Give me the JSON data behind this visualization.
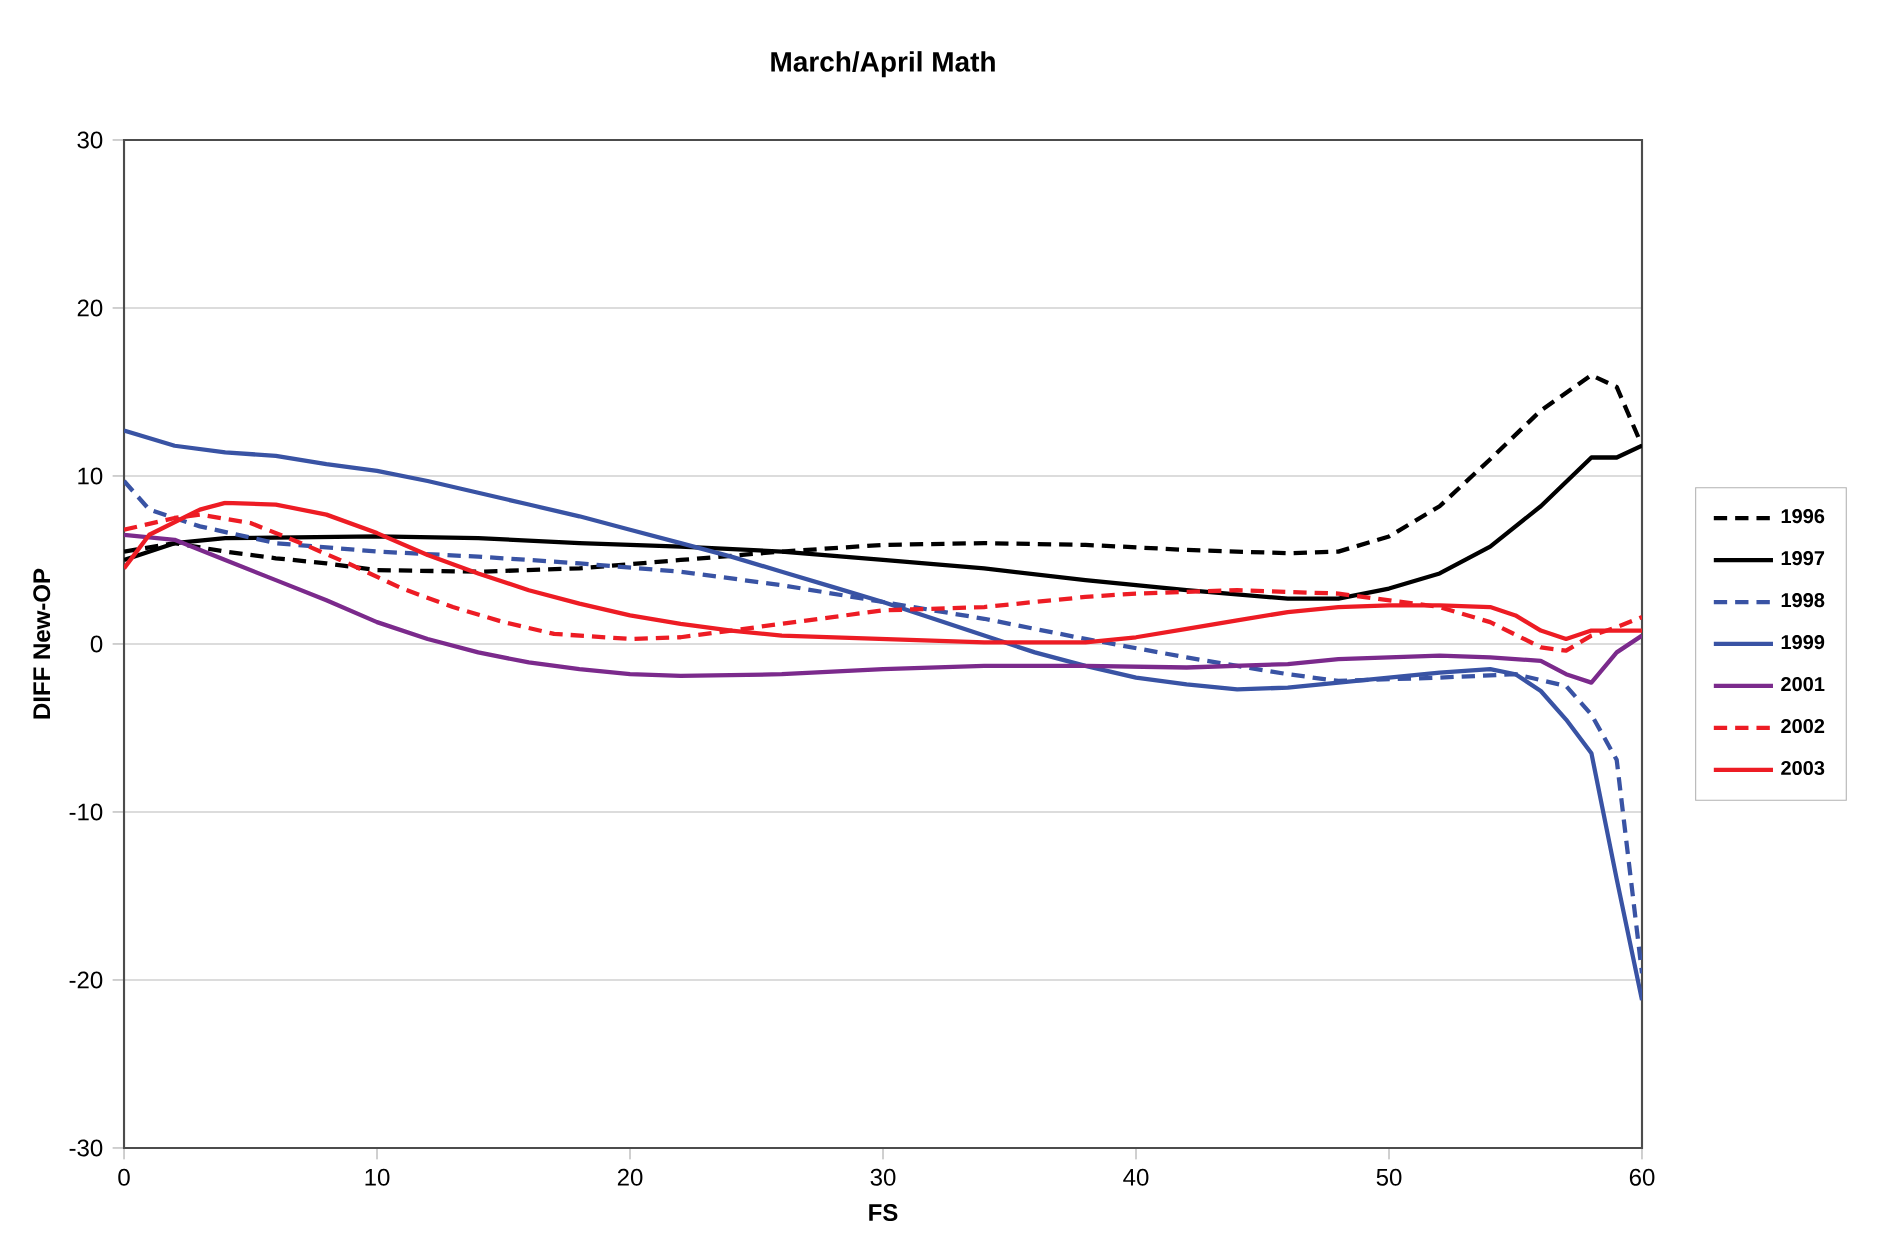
{
  "chart_data": {
    "type": "line",
    "title": "March/April Math",
    "xlabel": "FS",
    "ylabel": "DIFF New-OP",
    "xlim": [
      0,
      60
    ],
    "ylim": [
      -30,
      30
    ],
    "xticks": [
      0,
      10,
      20,
      30,
      40,
      50,
      60
    ],
    "yticks": [
      -30,
      -20,
      -10,
      0,
      10,
      20,
      30
    ],
    "grid": "y",
    "legend": "right",
    "marker": "none",
    "series": [
      {
        "name": "1996",
        "color": "#000000",
        "line_style": "dashed",
        "x": [
          0,
          2,
          4,
          6,
          8,
          10,
          14,
          18,
          22,
          26,
          30,
          34,
          38,
          42,
          46,
          48,
          50,
          52,
          54,
          56,
          58,
          59,
          60
        ],
        "values": [
          5.5,
          6,
          5.5,
          5.1,
          4.8,
          4.4,
          4.3,
          4.5,
          5,
          5.5,
          5.9,
          6,
          5.9,
          5.6,
          5.4,
          5.5,
          6.4,
          8.2,
          11,
          13.9,
          16,
          15.3,
          11.8
        ]
      },
      {
        "name": "1997",
        "color": "#000000",
        "line_style": "solid",
        "x": [
          0,
          2,
          4,
          10,
          14,
          18,
          22,
          26,
          30,
          34,
          38,
          42,
          46,
          48,
          50,
          52,
          54,
          56,
          58,
          59,
          60
        ],
        "values": [
          5,
          6,
          6.3,
          6.4,
          6.3,
          6,
          5.8,
          5.5,
          5,
          4.5,
          3.8,
          3.2,
          2.7,
          2.7,
          3.3,
          4.2,
          5.8,
          8.2,
          11.1,
          11.1,
          11.8
        ]
      },
      {
        "name": "1998",
        "color": "#3953a4",
        "line_style": "dashed",
        "x": [
          0,
          1,
          3,
          6,
          10,
          14,
          18,
          22,
          26,
          30,
          34,
          38,
          42,
          46,
          48,
          52,
          55,
          57,
          58,
          59,
          60
        ],
        "values": [
          9.7,
          8,
          7,
          6,
          5.5,
          5.2,
          4.8,
          4.3,
          3.5,
          2.5,
          1.5,
          0.3,
          -0.8,
          -1.8,
          -2.2,
          -2,
          -1.8,
          -2.5,
          -4.2,
          -6.9,
          -19.6
        ]
      },
      {
        "name": "1999",
        "color": "#3953a4",
        "line_style": "solid",
        "x": [
          0,
          2,
          4,
          6,
          8,
          10,
          12,
          14,
          16,
          18,
          20,
          22,
          24,
          26,
          28,
          30,
          32,
          34,
          36,
          38,
          40,
          42,
          44,
          46,
          48,
          50,
          52,
          54,
          55,
          56,
          57,
          58,
          59,
          60
        ],
        "values": [
          12.7,
          11.8,
          11.4,
          11.2,
          10.7,
          10.3,
          9.7,
          9,
          8.3,
          7.6,
          6.8,
          6,
          5.2,
          4.3,
          3.4,
          2.5,
          1.5,
          0.5,
          -0.5,
          -1.3,
          -2,
          -2.4,
          -2.7,
          -2.6,
          -2.3,
          -2,
          -1.7,
          -1.5,
          -1.8,
          -2.8,
          -4.5,
          -6.5,
          -14,
          -21.2
        ]
      },
      {
        "name": "2001",
        "color": "#7b2a8c",
        "line_style": "solid",
        "x": [
          0,
          2,
          4,
          6,
          8,
          10,
          12,
          14,
          16,
          18,
          20,
          22,
          26,
          30,
          34,
          38,
          42,
          46,
          48,
          52,
          54,
          56,
          57,
          58,
          59,
          60
        ],
        "values": [
          6.5,
          6.2,
          5,
          3.8,
          2.6,
          1.3,
          0.3,
          -0.5,
          -1.1,
          -1.5,
          -1.8,
          -1.9,
          -1.8,
          -1.5,
          -1.3,
          -1.3,
          -1.4,
          -1.2,
          -0.9,
          -0.7,
          -0.8,
          -1,
          -1.8,
          -2.3,
          -0.5,
          0.5
        ]
      },
      {
        "name": "2002",
        "color": "#ed1c24",
        "line_style": "dashed",
        "x": [
          0,
          2,
          3,
          5,
          7,
          9,
          11,
          13,
          15,
          17,
          20,
          22,
          24,
          26,
          28,
          30,
          34,
          36,
          38,
          40,
          44,
          48,
          52,
          54,
          56,
          57,
          58,
          59,
          60
        ],
        "values": [
          6.8,
          7.5,
          7.7,
          7.2,
          6,
          4.7,
          3.3,
          2.2,
          1.3,
          0.6,
          0.3,
          0.4,
          0.8,
          1.2,
          1.6,
          2,
          2.2,
          2.5,
          2.8,
          3,
          3.2,
          3,
          2.2,
          1.3,
          -0.2,
          -0.4,
          0.5,
          1,
          1.6
        ]
      },
      {
        "name": "2003",
        "color": "#ed1c24",
        "line_style": "solid",
        "x": [
          0,
          1,
          3,
          4,
          6,
          8,
          10,
          12,
          14,
          16,
          18,
          20,
          22,
          24,
          26,
          30,
          34,
          38,
          40,
          42,
          44,
          46,
          48,
          50,
          52,
          54,
          55,
          56,
          57,
          58,
          60
        ],
        "values": [
          4.5,
          6.5,
          8,
          8.4,
          8.3,
          7.7,
          6.6,
          5.3,
          4.2,
          3.2,
          2.4,
          1.7,
          1.2,
          0.8,
          0.5,
          0.3,
          0.1,
          0.1,
          0.4,
          0.9,
          1.4,
          1.9,
          2.2,
          2.3,
          2.3,
          2.2,
          1.7,
          0.8,
          0.3,
          0.8,
          0.8
        ]
      }
    ]
  }
}
